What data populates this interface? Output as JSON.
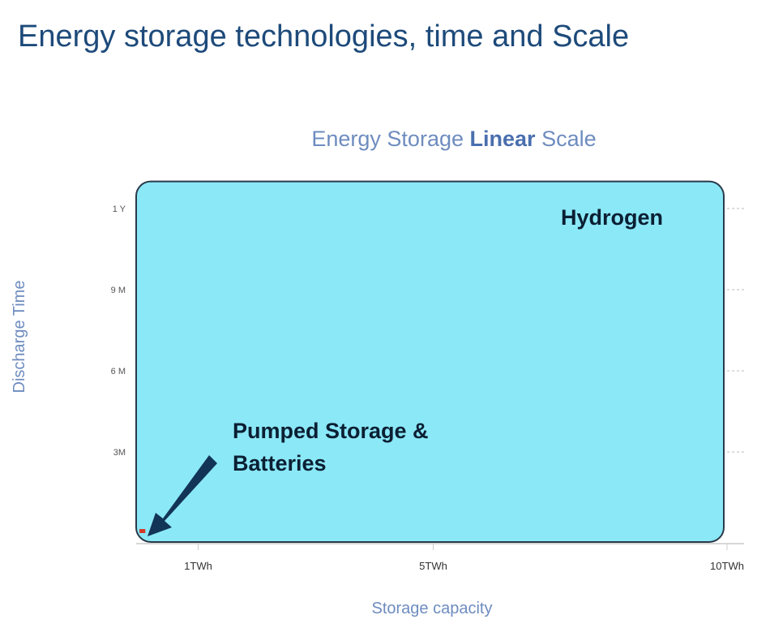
{
  "page_title": "Energy storage technologies, time and Scale",
  "chart_data": {
    "type": "region",
    "title_parts": [
      "Energy Storage",
      "Linear",
      "Scale"
    ],
    "x_label": "Storage capacity",
    "y_label": "Discharge Time",
    "xlim": [
      0,
      10
    ],
    "ylim": [
      0,
      12
    ],
    "xticks": [
      {
        "value": 1,
        "label": "1TWh"
      },
      {
        "value": 5,
        "label": "5TWh"
      },
      {
        "value": 10,
        "label": "10TWh"
      }
    ],
    "yticks": [
      {
        "value": 3,
        "label": "3M"
      },
      {
        "value": 6,
        "label": "6 M"
      },
      {
        "value": 9,
        "label": "9 M"
      },
      {
        "value": 12,
        "label": "1 Y"
      }
    ],
    "regions": [
      {
        "name": "Hydrogen",
        "color": "#8be8f7",
        "xrange": [
          0,
          10
        ],
        "yrange": [
          0,
          13
        ]
      },
      {
        "name": "Pumped Storage & Batteries",
        "color": "#d03a2a",
        "xrange": [
          0,
          0.1
        ],
        "yrange": [
          0,
          0.15
        ]
      }
    ]
  }
}
